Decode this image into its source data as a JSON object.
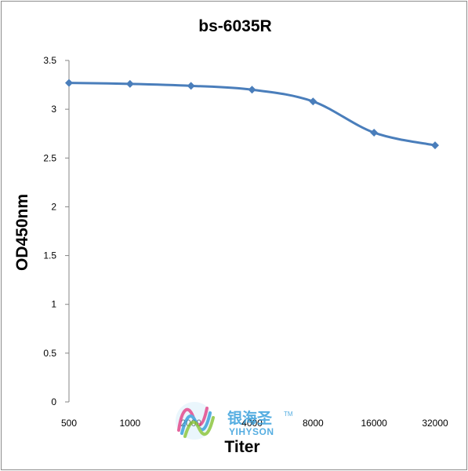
{
  "chart_data": {
    "type": "line",
    "title": "bs-6035R",
    "xlabel": "Titer",
    "ylabel": "OD450nm",
    "categories": [
      "500",
      "1000",
      "2000",
      "4000",
      "8000",
      "16000",
      "32000"
    ],
    "series": [
      {
        "values": [
          3.27,
          3.26,
          3.24,
          3.2,
          3.08,
          2.76,
          2.63
        ]
      }
    ],
    "ylim": [
      0,
      3.5
    ],
    "yticks": [
      "0",
      "0.5",
      "1",
      "1.5",
      "2",
      "2.5",
      "3",
      "3.5"
    ],
    "grid": false,
    "legend": "none",
    "line_color": "#4a7ebb",
    "marker": "diamond"
  },
  "watermark": {
    "brand_cn": "银海圣",
    "brand_en": "YIHYSON",
    "trademark": "TM",
    "color": "#39a0dc"
  }
}
